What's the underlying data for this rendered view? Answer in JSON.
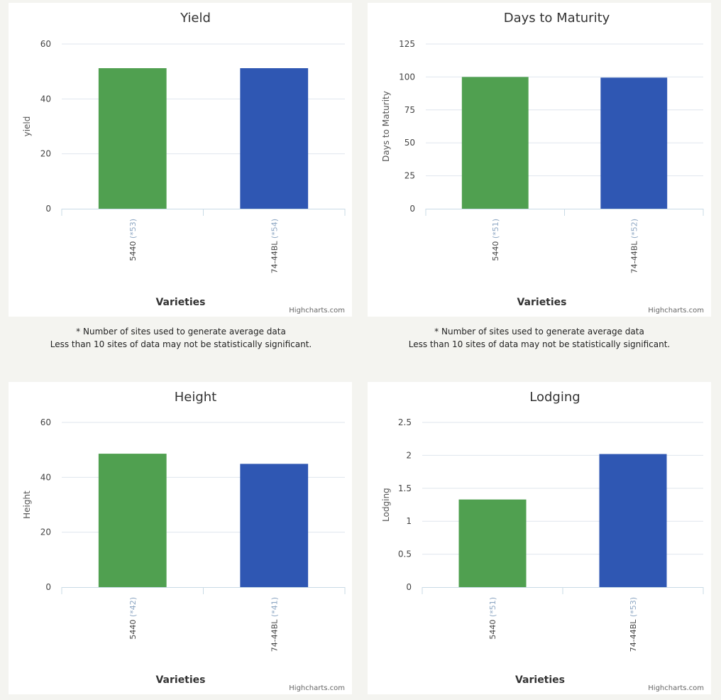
{
  "colors": {
    "series_1": "#50a050",
    "series_2": "#2f57b3",
    "grid": "#dfe6ee",
    "axis": "#c9dbe6",
    "tick_label": "#444444",
    "sample_label": "#8fa8c4",
    "credit": "#666666"
  },
  "credit": "Highcharts.com",
  "footnote": {
    "line1": "* Number of sites used to generate average data",
    "line2": "Less than 10 sites of data may not be statistically significant."
  },
  "chart_data": [
    {
      "type": "bar",
      "title": "Yield",
      "ylabel": "yield",
      "xlabel": "Varieties",
      "ylim": [
        0,
        60
      ],
      "yticks": [
        0,
        20,
        40,
        60
      ],
      "categories": [
        "5440",
        "74-44BL"
      ],
      "sample_labels": [
        "(*53)",
        "(*54)"
      ],
      "values": [
        51.2,
        51.2
      ],
      "grid": true
    },
    {
      "type": "bar",
      "title": "Days to Maturity",
      "ylabel": "Days to Maturity",
      "xlabel": "Varieties",
      "ylim": [
        0,
        125
      ],
      "yticks": [
        0,
        25,
        50,
        75,
        100,
        125
      ],
      "categories": [
        "5440",
        "74-44BL"
      ],
      "sample_labels": [
        "(*51)",
        "(*52)"
      ],
      "values": [
        100,
        99.5
      ],
      "grid": true
    },
    {
      "type": "bar",
      "title": "Height",
      "ylabel": "Height",
      "xlabel": "Varieties",
      "ylim": [
        0,
        60
      ],
      "yticks": [
        0,
        20,
        40,
        60
      ],
      "categories": [
        "5440",
        "74-44BL"
      ],
      "sample_labels": [
        "(*42)",
        "(*41)"
      ],
      "values": [
        48.6,
        44.9
      ],
      "grid": true
    },
    {
      "type": "bar",
      "title": "Lodging",
      "ylabel": "Lodging",
      "xlabel": "Varieties",
      "ylim": [
        0,
        2.5
      ],
      "yticks": [
        0,
        0.5,
        1,
        1.5,
        2,
        2.5
      ],
      "ytick_labels": [
        "0",
        "0.5",
        "1",
        "1.5",
        "2",
        "2.5"
      ],
      "categories": [
        "5440",
        "74-44BL"
      ],
      "sample_labels": [
        "(*51)",
        "(*53)"
      ],
      "values": [
        1.33,
        2.02
      ],
      "grid": true
    }
  ]
}
